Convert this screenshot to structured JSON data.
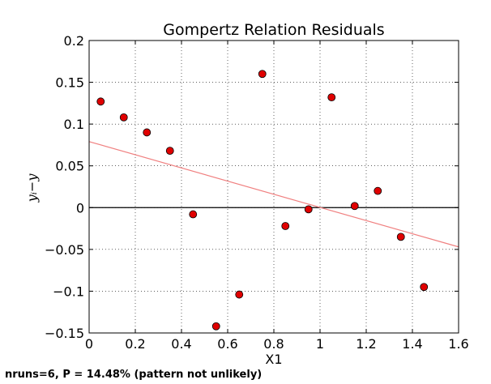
{
  "chart_data": {
    "type": "scatter",
    "title": "Gompertz Relation Residuals",
    "xlabel": "X1",
    "ylabel": "yᵢ−y",
    "xlim": [
      0,
      1.6
    ],
    "ylim": [
      -0.15,
      0.2
    ],
    "xticks": [
      "0",
      "0.2",
      "0.4",
      "0.6",
      "0.8",
      "1",
      "1.2",
      "1.4",
      "1.6"
    ],
    "yticks": [
      "−0.15",
      "−0.1",
      "−0.05",
      "0",
      "0.05",
      "0.1",
      "0.15",
      "0.2"
    ],
    "grid": true,
    "points": {
      "x": [
        0.05,
        0.15,
        0.25,
        0.35,
        0.45,
        0.55,
        0.65,
        0.75,
        0.85,
        0.95,
        1.05,
        1.15,
        1.25,
        1.35,
        1.45
      ],
      "y": [
        0.127,
        0.108,
        0.09,
        0.068,
        -0.008,
        -0.142,
        -0.104,
        0.16,
        -0.022,
        -0.002,
        0.132,
        0.002,
        0.02,
        -0.035,
        -0.095
      ],
      "color": "#e00000"
    },
    "zero_line": {
      "y": 0,
      "color": "#000000"
    },
    "trend_line": {
      "x": [
        0,
        1.6
      ],
      "y": [
        0.079,
        -0.047
      ],
      "color": "#f08080"
    }
  },
  "footnote": "nruns=6, P = 14.48% (pattern not unlikely)"
}
